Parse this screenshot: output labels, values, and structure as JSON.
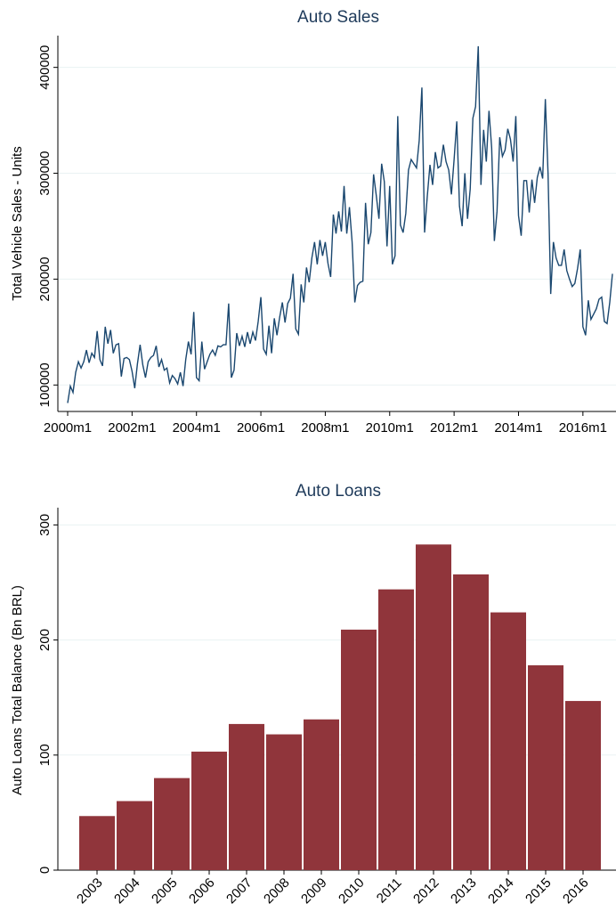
{
  "chart_data": [
    {
      "type": "line",
      "title": "Auto Sales",
      "ylabel": "Total Vehicle Sales - Units",
      "x": [
        "2000m1",
        "2000m2",
        "2000m3",
        "2000m4",
        "2000m5",
        "2000m6",
        "2000m7",
        "2000m8",
        "2000m9",
        "2000m10",
        "2000m11",
        "2000m12",
        "2001m1",
        "2001m2",
        "2001m3",
        "2001m4",
        "2001m5",
        "2001m6",
        "2001m7",
        "2001m8",
        "2001m9",
        "2001m10",
        "2001m11",
        "2001m12",
        "2002m1",
        "2002m2",
        "2002m3",
        "2002m4",
        "2002m5",
        "2002m6",
        "2002m7",
        "2002m8",
        "2002m9",
        "2002m10",
        "2002m11",
        "2002m12",
        "2003m1",
        "2003m2",
        "2003m3",
        "2003m4",
        "2003m5",
        "2003m6",
        "2003m7",
        "2003m8",
        "2003m9",
        "2003m10",
        "2003m11",
        "2003m12",
        "2004m1",
        "2004m2",
        "2004m3",
        "2004m4",
        "2004m5",
        "2004m6",
        "2004m7",
        "2004m8",
        "2004m9",
        "2004m10",
        "2004m11",
        "2004m12",
        "2005m1",
        "2005m2",
        "2005m3",
        "2005m4",
        "2005m5",
        "2005m6",
        "2005m7",
        "2005m8",
        "2005m9",
        "2005m10",
        "2005m11",
        "2005m12",
        "2006m1",
        "2006m2",
        "2006m3",
        "2006m4",
        "2006m5",
        "2006m6",
        "2006m7",
        "2006m8",
        "2006m9",
        "2006m10",
        "2006m11",
        "2006m12",
        "2007m1",
        "2007m2",
        "2007m3",
        "2007m4",
        "2007m5",
        "2007m6",
        "2007m7",
        "2007m8",
        "2007m9",
        "2007m10",
        "2007m11",
        "2007m12",
        "2008m1",
        "2008m2",
        "2008m3",
        "2008m4",
        "2008m5",
        "2008m6",
        "2008m7",
        "2008m8",
        "2008m9",
        "2008m10",
        "2008m11",
        "2008m12",
        "2009m1",
        "2009m2",
        "2009m3",
        "2009m4",
        "2009m5",
        "2009m6",
        "2009m7",
        "2009m8",
        "2009m9",
        "2009m10",
        "2009m11",
        "2009m12",
        "2010m1",
        "2010m2",
        "2010m3",
        "2010m4",
        "2010m5",
        "2010m6",
        "2010m7",
        "2010m8",
        "2010m9",
        "2010m10",
        "2010m11",
        "2010m12",
        "2011m1",
        "2011m2",
        "2011m3",
        "2011m4",
        "2011m5",
        "2011m6",
        "2011m7",
        "2011m8",
        "2011m9",
        "2011m10",
        "2011m11",
        "2011m12",
        "2012m1",
        "2012m2",
        "2012m3",
        "2012m4",
        "2012m5",
        "2012m6",
        "2012m7",
        "2012m8",
        "2012m9",
        "2012m10",
        "2012m11",
        "2012m12",
        "2013m1",
        "2013m2",
        "2013m3",
        "2013m4",
        "2013m5",
        "2013m6",
        "2013m7",
        "2013m8",
        "2013m9",
        "2013m10",
        "2013m11",
        "2013m12",
        "2014m1",
        "2014m2",
        "2014m3",
        "2014m4",
        "2014m5",
        "2014m6",
        "2014m7",
        "2014m8",
        "2014m9",
        "2014m10",
        "2014m11",
        "2014m12",
        "2015m1",
        "2015m2",
        "2015m3",
        "2015m4",
        "2015m5",
        "2015m6",
        "2015m7",
        "2015m8",
        "2015m9",
        "2015m10",
        "2015m11",
        "2015m12",
        "2016m1",
        "2016m2",
        "2016m3",
        "2016m4",
        "2016m5",
        "2016m6",
        "2016m7",
        "2016m8",
        "2016m9",
        "2016m10",
        "2016m11",
        "2016m12"
      ],
      "series": [
        {
          "name": "Total Vehicle Sales - Units",
          "color": "#1a476f",
          "values": [
            83000,
            99000,
            93000,
            112000,
            122000,
            116000,
            122000,
            133000,
            121000,
            130000,
            126000,
            151000,
            124000,
            118000,
            155000,
            139000,
            152000,
            130000,
            138000,
            139000,
            108000,
            125000,
            126000,
            124000,
            113000,
            97000,
            120000,
            138000,
            119000,
            107000,
            122000,
            126000,
            128000,
            137000,
            117000,
            124000,
            114000,
            116000,
            102000,
            109000,
            106000,
            101000,
            112000,
            99000,
            124000,
            141000,
            129000,
            169000,
            107000,
            104000,
            141000,
            115000,
            122000,
            129000,
            133000,
            128000,
            137000,
            136000,
            138000,
            138000,
            177000,
            107000,
            114000,
            149000,
            137000,
            146000,
            136000,
            150000,
            139000,
            150000,
            142000,
            160000,
            183000,
            134000,
            129000,
            156000,
            130000,
            163000,
            147000,
            164000,
            178000,
            159000,
            177000,
            182000,
            205000,
            153000,
            148000,
            195000,
            178000,
            211000,
            197000,
            220000,
            235000,
            214000,
            237000,
            222000,
            235000,
            215000,
            202000,
            261000,
            243000,
            264000,
            245000,
            288000,
            243000,
            268000,
            235000,
            178000,
            194000,
            197000,
            198000,
            272000,
            233000,
            244000,
            299000,
            279000,
            257000,
            309000,
            292000,
            231000,
            288000,
            214000,
            222000,
            354000,
            251000,
            244000,
            262000,
            303000,
            313000,
            309000,
            305000,
            331000,
            381000,
            244000,
            278000,
            308000,
            289000,
            320000,
            305000,
            307000,
            327000,
            311000,
            303000,
            280000,
            313000,
            349000,
            269000,
            250000,
            300000,
            257000,
            285000,
            352000,
            363000,
            420000,
            289000,
            341000,
            311000,
            359000,
            324000,
            236000,
            264000,
            334000,
            316000,
            322000,
            342000,
            332000,
            311000,
            354000,
            260000,
            241000,
            293000,
            293000,
            263000,
            294000,
            272000,
            296000,
            306000,
            295000,
            370000,
            300000,
            186000,
            235000,
            220000,
            213000,
            213000,
            228000,
            208000,
            200000,
            193000,
            196000,
            210000,
            228000,
            155000,
            147000,
            180000,
            162000,
            167000,
            172000,
            181000,
            183000,
            160000,
            158000,
            178000,
            205000
          ]
        }
      ],
      "ylim": [
        75000,
        430000
      ],
      "yticks": [
        100000,
        200000,
        300000,
        400000
      ],
      "xticks": [
        "2000m1",
        "2002m1",
        "2004m1",
        "2006m1",
        "2008m1",
        "2010m1",
        "2012m1",
        "2014m1",
        "2016m1"
      ],
      "grid": true
    },
    {
      "type": "bar",
      "title": "Auto Loans",
      "ylabel": "Auto Loans Total Balance (Bn BRL)",
      "categories": [
        "2003",
        "2004",
        "2005",
        "2006",
        "2007",
        "2008",
        "2009",
        "2010",
        "2011",
        "2012",
        "2013",
        "2014",
        "2015",
        "2016"
      ],
      "values": [
        47,
        60,
        80,
        103,
        127,
        118,
        131,
        209,
        244,
        283,
        257,
        224,
        178,
        147
      ],
      "color": "#90353b",
      "ylim": [
        0,
        315
      ],
      "yticks": [
        0,
        100,
        200,
        300
      ],
      "grid": true
    }
  ]
}
